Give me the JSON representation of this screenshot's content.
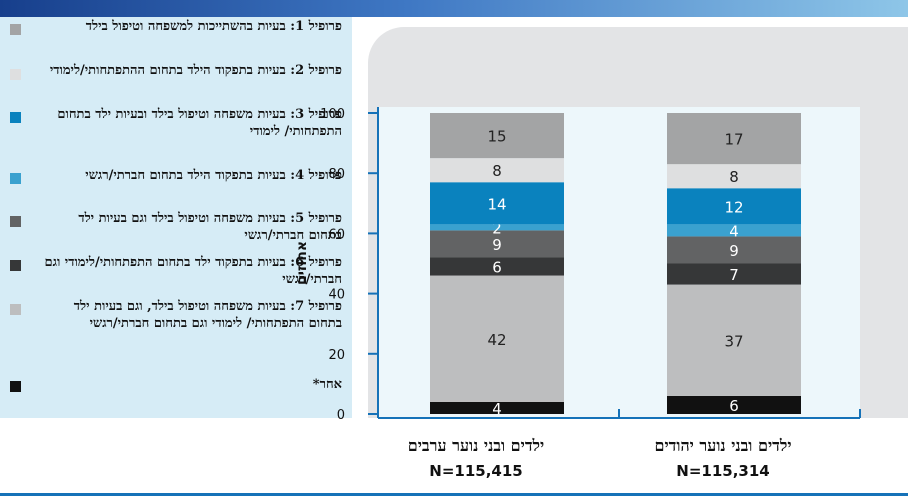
{
  "chart_data": {
    "type": "bar",
    "stacked": true,
    "ylabel": "אחוזים",
    "ylim": [
      0,
      100
    ],
    "yticks": [
      0,
      20,
      40,
      60,
      80,
      100
    ],
    "categories": [
      {
        "name": "ילדים ובני נוער ערבים",
        "n": "N=115,415"
      },
      {
        "name": "ילדים ובני נוער יהודים",
        "n": "N=115,314"
      }
    ],
    "series": [
      {
        "name": "אחר*",
        "color": "#111111",
        "label_color": "#ffffff",
        "values": [
          4,
          6
        ]
      },
      {
        "name": "פרופיל 7: בעיות משפחה וטיפול בילד, וגם בעיות ילד בתחום התפתחותי/ לימודי וגם בתחום חברתי/רגשי",
        "color": "#bdbebf",
        "label_color": "#222222",
        "values": [
          42,
          37
        ]
      },
      {
        "name": "פרופיל 6: בעיות בתפקוד ילד בתחום התפתחותי/לימודי וגם חברתי/רגשי",
        "color": "#363738",
        "label_color": "#ffffff",
        "values": [
          6,
          7
        ]
      },
      {
        "name": "פרופיל 5: בעיות משפחה וטיפול בילד וגם בעיות ילד בתחום חברתי/רגשי",
        "color": "#626364",
        "label_color": "#ffffff",
        "values": [
          9,
          9
        ]
      },
      {
        "name": "פרופיל 4: בעיות בתפקוד הילד בתחום חברתי/רגשי",
        "color": "#3aa1cf",
        "label_color": "#ffffff",
        "values": [
          2,
          4
        ]
      },
      {
        "name": "פרופיל 3: בעיות משפחה וטיפול בילד ובעיות ילד בתחום התפתחותי/ לימודי",
        "color": "#0a82be",
        "label_color": "#ffffff",
        "values": [
          14,
          12
        ]
      },
      {
        "name": "פרופיל 2: בעיות בתפקוד הילד בתחום ההתפתחותי/לימודי",
        "color": "#dedfe0",
        "label_color": "#222222",
        "values": [
          8,
          8
        ]
      },
      {
        "name": "פרופיל 1: בעיות בהשתייכות למשפחה וטיפול בילד",
        "color": "#a3a4a5",
        "label_color": "#222222",
        "values": [
          15,
          17
        ]
      }
    ]
  }
}
